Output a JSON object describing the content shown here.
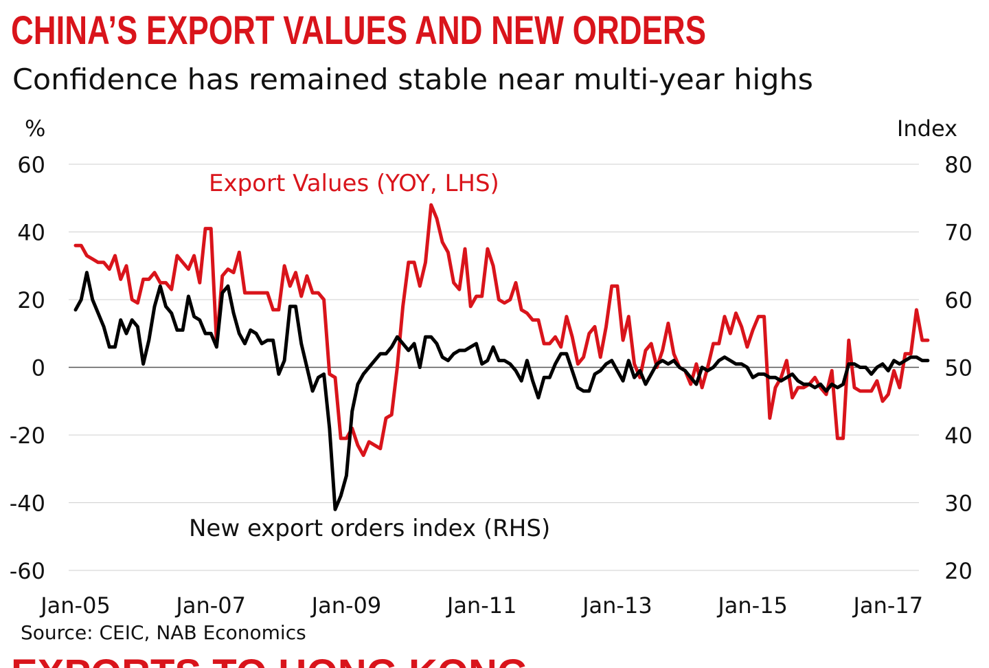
{
  "header": {
    "title": "CHINA’S EXPORT VALUES AND NEW ORDERS",
    "subtitle": "Confidence has remained stable near multi-year highs",
    "next_title": "EXPORTS TO HONG KONG"
  },
  "footer": {
    "source": "Source: CEIC, NAB Economics"
  },
  "colors": {
    "title": "#d9141b",
    "export_series": "#d9141b",
    "orders_series": "#000000",
    "grid": "#cfcfcf"
  },
  "chart_data": {
    "type": "line",
    "left_axis": {
      "label": "%",
      "min": -60,
      "max": 60,
      "ticks": [
        60,
        40,
        20,
        0,
        -20,
        -40,
        -60
      ]
    },
    "right_axis": {
      "label": "Index",
      "min": 20,
      "max": 80,
      "ticks": [
        80,
        70,
        60,
        50,
        40,
        30,
        20
      ]
    },
    "x_axis": {
      "start": "Jan-05",
      "end": "Apr-17",
      "ticks": [
        "Jan-05",
        "Jan-07",
        "Jan-09",
        "Jan-11",
        "Jan-13",
        "Jan-15",
        "Jan-17"
      ]
    },
    "grid": true,
    "zero_line": true,
    "series": [
      {
        "name": "Export Values (YOY, LHS)",
        "axis": "left",
        "annotation": "Export Values (YOY, LHS)",
        "values": [
          [
            0,
            36
          ],
          [
            1,
            36
          ],
          [
            2,
            33
          ],
          [
            3,
            32
          ],
          [
            4,
            31
          ],
          [
            5,
            31
          ],
          [
            6,
            29
          ],
          [
            7,
            33
          ],
          [
            8,
            26
          ],
          [
            9,
            30
          ],
          [
            10,
            20
          ],
          [
            11,
            19
          ],
          [
            12,
            26
          ],
          [
            13,
            26
          ],
          [
            14,
            28
          ],
          [
            15,
            25
          ],
          [
            16,
            25
          ],
          [
            17,
            23
          ],
          [
            18,
            33
          ],
          [
            19,
            31
          ],
          [
            20,
            29
          ],
          [
            21,
            33
          ],
          [
            22,
            25
          ],
          [
            23,
            41
          ],
          [
            24,
            41
          ],
          [
            25,
            7
          ],
          [
            26,
            27
          ],
          [
            27,
            29
          ],
          [
            28,
            28
          ],
          [
            29,
            34
          ],
          [
            30,
            22
          ],
          [
            31,
            22
          ],
          [
            32,
            22
          ],
          [
            33,
            22
          ],
          [
            34,
            22
          ],
          [
            35,
            17
          ],
          [
            36,
            17
          ],
          [
            37,
            30
          ],
          [
            38,
            24
          ],
          [
            39,
            28
          ],
          [
            40,
            21
          ],
          [
            41,
            27
          ],
          [
            42,
            22
          ],
          [
            43,
            22
          ],
          [
            44,
            20
          ],
          [
            45,
            -2
          ],
          [
            46,
            -3
          ],
          [
            47,
            -21
          ],
          [
            48,
            -21
          ],
          [
            49,
            -18
          ],
          [
            50,
            -23
          ],
          [
            51,
            -26
          ],
          [
            52,
            -22
          ],
          [
            53,
            -23
          ],
          [
            54,
            -24
          ],
          [
            55,
            -15
          ],
          [
            56,
            -14
          ],
          [
            57,
            0
          ],
          [
            58,
            18
          ],
          [
            59,
            31
          ],
          [
            60,
            31
          ],
          [
            61,
            24
          ],
          [
            62,
            31
          ],
          [
            63,
            48
          ],
          [
            64,
            44
          ],
          [
            65,
            37
          ],
          [
            66,
            34
          ],
          [
            67,
            25
          ],
          [
            68,
            23
          ],
          [
            69,
            35
          ],
          [
            70,
            18
          ],
          [
            71,
            21
          ],
          [
            72,
            21
          ],
          [
            73,
            35
          ],
          [
            74,
            30
          ],
          [
            75,
            20
          ],
          [
            76,
            19
          ],
          [
            77,
            20
          ],
          [
            78,
            25
          ],
          [
            79,
            17
          ],
          [
            80,
            16
          ],
          [
            81,
            14
          ],
          [
            82,
            14
          ],
          [
            83,
            7
          ],
          [
            84,
            7
          ],
          [
            85,
            9
          ],
          [
            86,
            6
          ],
          [
            87,
            15
          ],
          [
            88,
            9
          ],
          [
            89,
            1
          ],
          [
            90,
            3
          ],
          [
            91,
            10
          ],
          [
            92,
            12
          ],
          [
            93,
            3
          ],
          [
            94,
            12
          ],
          [
            95,
            24
          ],
          [
            96,
            24
          ],
          [
            97,
            8
          ],
          [
            98,
            15
          ],
          [
            99,
            1
          ],
          [
            100,
            -3
          ],
          [
            101,
            5
          ],
          [
            102,
            7
          ],
          [
            103,
            0
          ],
          [
            104,
            5
          ],
          [
            105,
            13
          ],
          [
            106,
            4
          ],
          [
            107,
            0
          ],
          [
            108,
            -1
          ],
          [
            109,
            -5
          ],
          [
            110,
            1
          ],
          [
            111,
            -6
          ],
          [
            112,
            0
          ],
          [
            113,
            7
          ],
          [
            114,
            7
          ],
          [
            115,
            15
          ],
          [
            116,
            10
          ],
          [
            117,
            16
          ],
          [
            118,
            12
          ],
          [
            119,
            6
          ],
          [
            120,
            11
          ],
          [
            121,
            15
          ],
          [
            122,
            15
          ],
          [
            123,
            -15
          ],
          [
            124,
            -6
          ],
          [
            125,
            -3
          ],
          [
            126,
            2
          ],
          [
            127,
            -9
          ],
          [
            128,
            -6
          ],
          [
            129,
            -6
          ],
          [
            130,
            -5
          ],
          [
            131,
            -3
          ],
          [
            132,
            -6
          ],
          [
            133,
            -8
          ],
          [
            134,
            -1
          ],
          [
            135,
            -21
          ],
          [
            136,
            -21
          ],
          [
            137,
            8
          ],
          [
            138,
            -6
          ],
          [
            139,
            -7
          ],
          [
            140,
            -7
          ],
          [
            141,
            -7
          ],
          [
            142,
            -4
          ],
          [
            143,
            -10
          ],
          [
            144,
            -8
          ],
          [
            145,
            -1
          ],
          [
            146,
            -6
          ],
          [
            147,
            4
          ],
          [
            148,
            4
          ],
          [
            149,
            17
          ],
          [
            150,
            8
          ],
          [
            151,
            8
          ]
        ]
      },
      {
        "name": "New export orders index (RHS)",
        "axis": "right",
        "annotation": "New export orders index (RHS)",
        "values": [
          [
            0,
            58.5
          ],
          [
            1,
            60
          ],
          [
            2,
            64
          ],
          [
            3,
            60
          ],
          [
            4,
            58
          ],
          [
            5,
            56
          ],
          [
            6,
            53
          ],
          [
            7,
            53
          ],
          [
            8,
            57
          ],
          [
            9,
            55
          ],
          [
            10,
            57
          ],
          [
            11,
            56
          ],
          [
            12,
            50.5
          ],
          [
            13,
            54
          ],
          [
            14,
            59
          ],
          [
            15,
            62
          ],
          [
            16,
            59
          ],
          [
            17,
            58
          ],
          [
            18,
            55.5
          ],
          [
            19,
            55.5
          ],
          [
            20,
            60.5
          ],
          [
            21,
            57.5
          ],
          [
            22,
            57
          ],
          [
            23,
            55
          ],
          [
            24,
            55
          ],
          [
            25,
            53
          ],
          [
            26,
            61
          ],
          [
            27,
            62
          ],
          [
            28,
            58
          ],
          [
            29,
            55
          ],
          [
            30,
            53.5
          ],
          [
            31,
            55.5
          ],
          [
            32,
            55
          ],
          [
            33,
            53.5
          ],
          [
            34,
            54
          ],
          [
            35,
            54
          ],
          [
            36,
            49
          ],
          [
            37,
            51
          ],
          [
            38,
            59
          ],
          [
            39,
            59
          ],
          [
            40,
            53.5
          ],
          [
            41,
            50
          ],
          [
            42,
            46.5
          ],
          [
            43,
            48.5
          ],
          [
            44,
            49
          ],
          [
            45,
            41
          ],
          [
            46,
            29
          ],
          [
            47,
            31
          ],
          [
            48,
            34
          ],
          [
            49,
            43.5
          ],
          [
            50,
            47.5
          ],
          [
            51,
            49
          ],
          [
            52,
            50
          ],
          [
            53,
            51
          ],
          [
            54,
            52
          ],
          [
            55,
            52
          ],
          [
            56,
            53
          ],
          [
            57,
            54.5
          ],
          [
            58,
            53.5
          ],
          [
            59,
            52.5
          ],
          [
            60,
            53.5
          ],
          [
            61,
            50
          ],
          [
            62,
            54.5
          ],
          [
            63,
            54.5
          ],
          [
            64,
            53.5
          ],
          [
            65,
            51.5
          ],
          [
            66,
            51
          ],
          [
            67,
            52
          ],
          [
            68,
            52.5
          ],
          [
            69,
            52.5
          ],
          [
            70,
            53
          ],
          [
            71,
            53.5
          ],
          [
            72,
            50.5
          ],
          [
            73,
            51
          ],
          [
            74,
            53
          ],
          [
            75,
            51
          ],
          [
            76,
            51
          ],
          [
            77,
            50.5
          ],
          [
            78,
            49.5
          ],
          [
            79,
            48
          ],
          [
            80,
            51
          ],
          [
            81,
            48
          ],
          [
            82,
            45.5
          ],
          [
            83,
            48.5
          ],
          [
            84,
            48.5
          ],
          [
            85,
            50.5
          ],
          [
            86,
            52
          ],
          [
            87,
            52
          ],
          [
            88,
            49.5
          ],
          [
            89,
            47
          ],
          [
            90,
            46.5
          ],
          [
            91,
            46.5
          ],
          [
            92,
            49
          ],
          [
            93,
            49.5
          ],
          [
            94,
            50.5
          ],
          [
            95,
            51
          ],
          [
            96,
            49.5
          ],
          [
            97,
            48
          ],
          [
            98,
            51
          ],
          [
            99,
            48.5
          ],
          [
            100,
            49.5
          ],
          [
            101,
            47.5
          ],
          [
            102,
            49
          ],
          [
            103,
            50.5
          ],
          [
            104,
            51
          ],
          [
            105,
            50.5
          ],
          [
            106,
            51
          ],
          [
            107,
            50
          ],
          [
            108,
            49.5
          ],
          [
            109,
            48.5
          ],
          [
            110,
            47.5
          ],
          [
            111,
            50
          ],
          [
            112,
            49.5
          ],
          [
            113,
            50
          ],
          [
            114,
            51
          ],
          [
            115,
            51.5
          ],
          [
            116,
            51
          ],
          [
            117,
            50.5
          ],
          [
            118,
            50.5
          ],
          [
            119,
            50
          ],
          [
            120,
            48.5
          ],
          [
            121,
            49
          ],
          [
            122,
            49
          ],
          [
            123,
            48.5
          ],
          [
            124,
            48.5
          ],
          [
            125,
            48
          ],
          [
            126,
            48.5
          ],
          [
            127,
            49
          ],
          [
            128,
            48
          ],
          [
            129,
            47.5
          ],
          [
            130,
            47.5
          ],
          [
            131,
            47
          ],
          [
            132,
            47.5
          ],
          [
            133,
            46.5
          ],
          [
            134,
            47.5
          ],
          [
            135,
            47
          ],
          [
            136,
            47.5
          ],
          [
            137,
            50.5
          ],
          [
            138,
            50.5
          ],
          [
            139,
            50
          ],
          [
            140,
            50
          ],
          [
            141,
            49
          ],
          [
            142,
            50
          ],
          [
            143,
            50.5
          ],
          [
            144,
            49.5
          ],
          [
            145,
            51
          ],
          [
            146,
            50.5
          ],
          [
            147,
            51
          ],
          [
            148,
            51.5
          ],
          [
            149,
            51.5
          ],
          [
            150,
            51
          ],
          [
            151,
            51
          ]
        ]
      }
    ]
  }
}
